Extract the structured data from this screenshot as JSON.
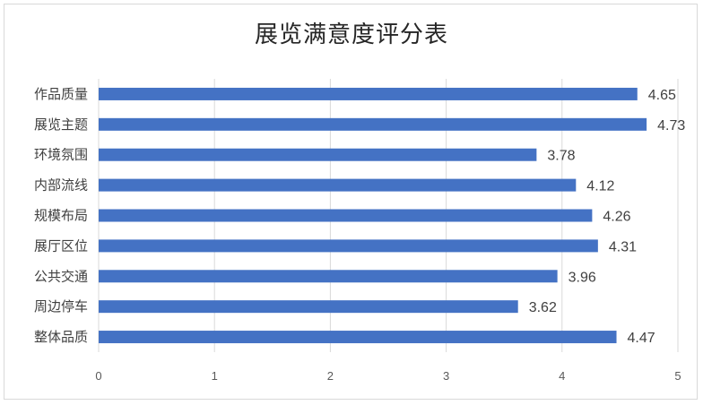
{
  "chart_data": {
    "type": "bar",
    "orientation": "horizontal",
    "title": "展览满意度评分表",
    "categories": [
      "作品质量",
      "展览主题",
      "环境氛围",
      "内部流线",
      "规模布局",
      "展厅区位",
      "公共交通",
      "周边停车",
      "整体品质"
    ],
    "values": [
      4.65,
      4.73,
      3.78,
      4.12,
      4.26,
      4.31,
      3.96,
      3.62,
      4.47
    ],
    "value_labels": [
      "4.65",
      "4.73",
      "3.78",
      "4.12",
      "4.26",
      "4.31",
      "3.96",
      "3.62",
      "4.47"
    ],
    "xticks": [
      "0",
      "1",
      "2",
      "3",
      "4",
      "5"
    ],
    "xlim": [
      0,
      5
    ],
    "xlabel": "",
    "ylabel": "",
    "grid": true,
    "bar_color": "#4472C4",
    "grid_color": "#d9d9d9"
  }
}
